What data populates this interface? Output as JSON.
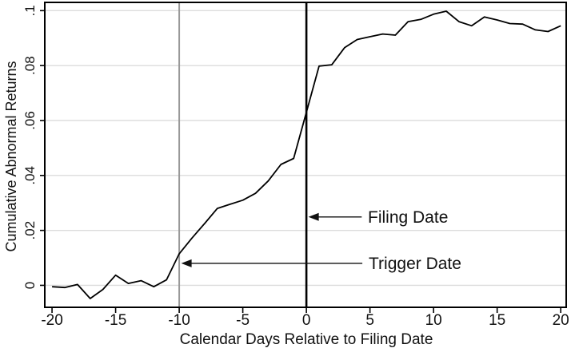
{
  "chart_data": {
    "type": "line",
    "title": "",
    "xlabel": "Calendar Days Relative to Filing Date",
    "ylabel": "Cumulative Abnormal Returns",
    "xlim": [
      -20.57,
      20.43
    ],
    "ylim": [
      -0.008,
      0.103
    ],
    "grid": "horizontal",
    "legend": "none",
    "x": [
      -20,
      -19,
      -18,
      -17,
      -16,
      -15,
      -14,
      -13,
      -12,
      -11,
      -10,
      -9,
      -8,
      -7,
      -6,
      -5,
      -4,
      -3,
      -2,
      -1,
      0,
      1,
      2,
      3,
      4,
      5,
      6,
      7,
      8,
      9,
      10,
      11,
      12,
      13,
      14,
      15,
      16,
      17,
      18,
      19,
      20
    ],
    "values": [
      -0.0005,
      -0.0008,
      0.0003,
      -0.0048,
      -0.0015,
      0.0037,
      0.0007,
      0.0017,
      -0.0005,
      0.002,
      0.0115,
      0.0172,
      0.0225,
      0.028,
      0.0295,
      0.031,
      0.0335,
      0.038,
      0.044,
      0.0462,
      0.063,
      0.0798,
      0.0803,
      0.0865,
      0.0895,
      0.0905,
      0.0915,
      0.0911,
      0.096,
      0.0968,
      0.0987,
      0.0998,
      0.096,
      0.0945,
      0.0977,
      0.0966,
      0.0953,
      0.0951,
      0.093,
      0.0924,
      0.0945
    ],
    "xticks": [
      -20,
      -15,
      -10,
      -5,
      0,
      5,
      10,
      15,
      20
    ],
    "xtick_labels": [
      "-20",
      "-15",
      "-10",
      "-5",
      "0",
      "5",
      "10",
      "15",
      "20"
    ],
    "yticks": [
      0,
      0.02,
      0.04,
      0.06,
      0.08,
      0.1
    ],
    "ytick_labels": [
      "0",
      ".02",
      ".04",
      ".06",
      ".08",
      ".1"
    ],
    "ref_lines": [
      {
        "name": "trigger-date-line",
        "x": -10,
        "color": "#999999",
        "width": 2
      },
      {
        "name": "filing-date-line",
        "x": 0,
        "color": "#000000",
        "width": 2.6
      }
    ],
    "annotations": [
      {
        "label": "Filing Date",
        "arrow_to_x": 0,
        "y_value": 0.0249,
        "tail_x": 4.35
      },
      {
        "label": "Trigger Date",
        "arrow_to_x": -10,
        "y_value": 0.008,
        "tail_x": 4.4
      }
    ],
    "colors": {
      "line": "#000000",
      "grid": "#dcdcdc",
      "frame": "#000000",
      "text": "#111111"
    }
  }
}
